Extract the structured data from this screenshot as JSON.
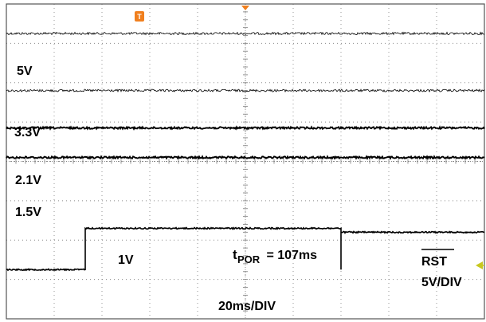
{
  "chart_data": {
    "type": "line",
    "title": "",
    "xlabel": "",
    "ylabel": "",
    "divisions": {
      "x": 10,
      "y": 8
    },
    "x_range_ms": [
      0,
      200
    ],
    "grid": true,
    "series": [
      {
        "name": "5V",
        "level_div": 7.25,
        "noise": "medium"
      },
      {
        "name": "3.3V",
        "level_div": 5.8,
        "noise": "medium"
      },
      {
        "name": "2.1V",
        "level_div": 4.85,
        "noise": "thick"
      },
      {
        "name": "1.5V",
        "level_div": 4.1,
        "noise": "thick"
      },
      {
        "name": "RST",
        "steps": [
          {
            "t_ms": 0,
            "level_div": 1.25
          },
          {
            "t_ms": 33,
            "level_div": 2.3
          },
          {
            "t_ms": 140,
            "level_div": 1.25
          },
          {
            "t_ms": 140,
            "level_div": 2.2
          },
          {
            "t_ms": 200,
            "level_div": 2.2
          }
        ]
      }
    ]
  },
  "labels": {
    "ch_5v": "5V",
    "ch_3v3": "3.3V",
    "ch_2v1": "2.1V",
    "ch_1v5": "1.5V",
    "rst_level": "1V",
    "tpor_t": "t",
    "tpor_sub": "POR",
    "tpor_value": " = 107ms",
    "rst_name": "RST",
    "rst_scale": "5V/DIV",
    "time_scale": "20ms/DIV",
    "trigger_marker": "T"
  },
  "colors": {
    "trace": "#000000",
    "grid": "#8a8a8a",
    "trigger": "#f07f1e",
    "level_marker": "#c8c820"
  }
}
